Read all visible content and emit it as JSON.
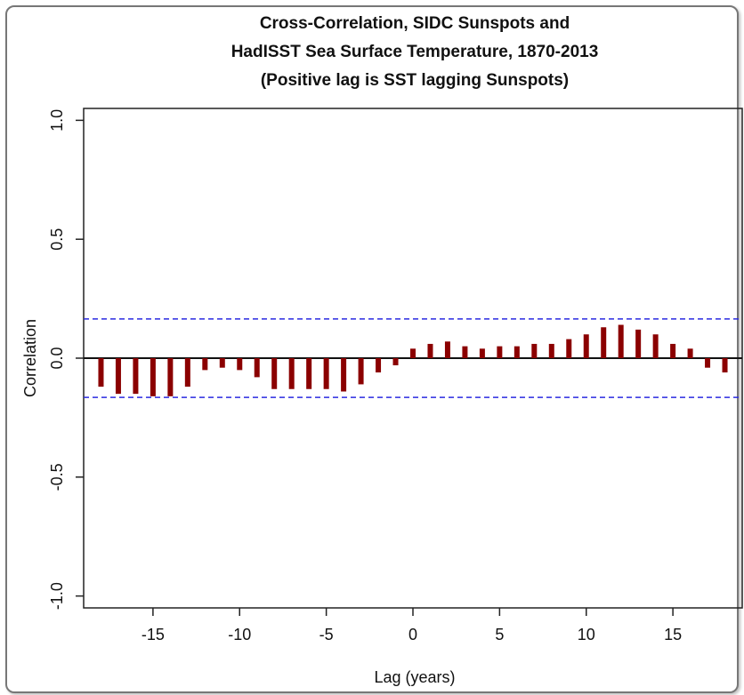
{
  "chart_data": {
    "type": "bar",
    "title": [
      "Cross-Correlation, SIDC Sunspots and",
      "HadISST Sea Surface Temperature, 1870-2013",
      "(Positive lag is SST lagging Sunspots)"
    ],
    "xlabel": "Lag (years)",
    "ylabel": "Correlation",
    "xlim": [
      -19,
      19
    ],
    "ylim": [
      -1.05,
      1.05
    ],
    "x_ticks": [
      -15,
      -10,
      -5,
      0,
      5,
      10,
      15
    ],
    "x_tick_labels": [
      "-15",
      "-10",
      "-5",
      "0",
      "5",
      "10",
      "15"
    ],
    "y_ticks": [
      -1.0,
      -0.5,
      0.0,
      0.5,
      1.0
    ],
    "y_tick_labels": [
      "-1.0",
      "-0.5",
      "0.0",
      "0.5",
      "1.0"
    ],
    "confidence_bounds": [
      0.165,
      -0.165
    ],
    "zero_line": 0,
    "x": [
      -18,
      -17,
      -16,
      -15,
      -14,
      -13,
      -12,
      -11,
      -10,
      -9,
      -8,
      -7,
      -6,
      -5,
      -4,
      -3,
      -2,
      -1,
      0,
      1,
      2,
      3,
      4,
      5,
      6,
      7,
      8,
      9,
      10,
      11,
      12,
      13,
      14,
      15,
      16,
      17,
      18
    ],
    "values": [
      -0.12,
      -0.15,
      -0.15,
      -0.16,
      -0.16,
      -0.12,
      -0.05,
      -0.04,
      -0.05,
      -0.08,
      -0.13,
      -0.13,
      -0.13,
      -0.13,
      -0.14,
      -0.11,
      -0.06,
      -0.03,
      0.04,
      0.06,
      0.07,
      0.05,
      0.04,
      0.05,
      0.05,
      0.06,
      0.06,
      0.08,
      0.1,
      0.13,
      0.14,
      0.12,
      0.1,
      0.06,
      0.04,
      -0.04,
      -0.06
    ],
    "bar_color": "#8b0000",
    "bound_color": "#2a2ae0",
    "grid": false,
    "legend": "none"
  }
}
